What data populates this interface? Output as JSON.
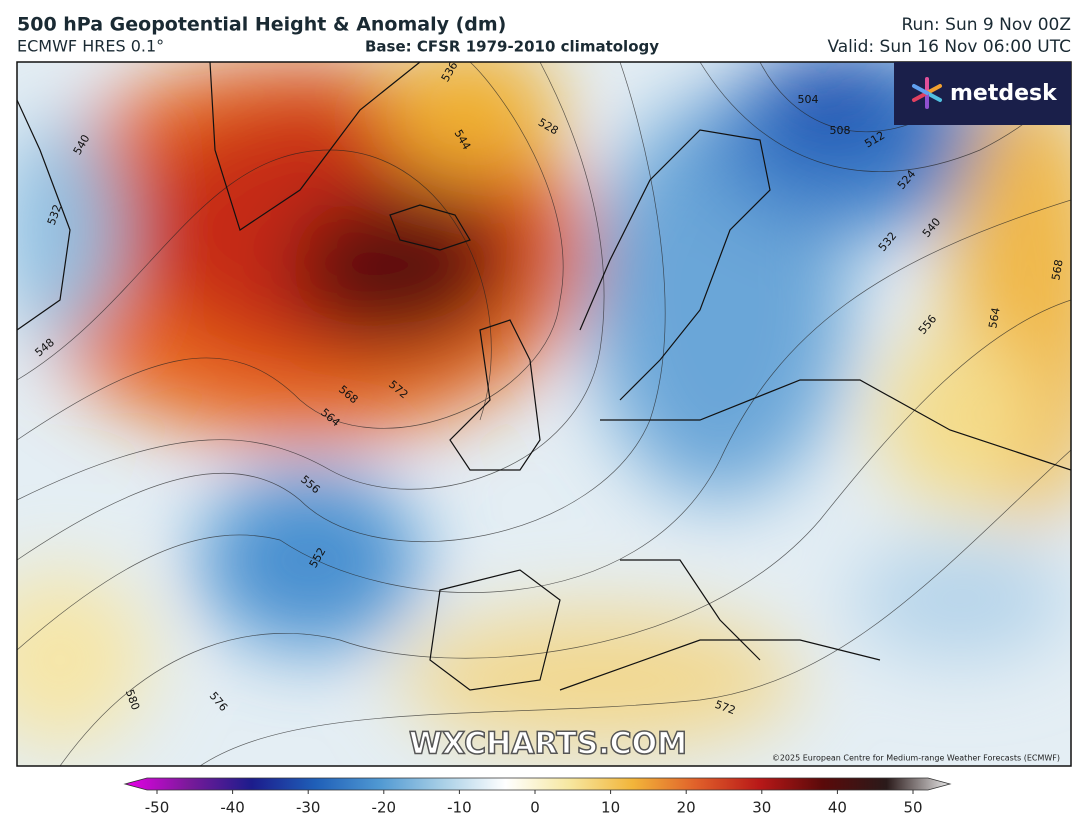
{
  "header": {
    "title": "500 hPa Geopotential Height & Anomaly (dm)",
    "model": "ECMWF HRES 0.1°",
    "base": "Base: CFSR 1979-2010 climatology",
    "run": "Run: Sun 9 Nov 00Z",
    "valid": "Valid: Sun 16 Nov 06:00 UTC"
  },
  "map": {
    "contour_labels": [
      "532",
      "548",
      "540",
      "536",
      "544",
      "528",
      "504",
      "508",
      "512",
      "524",
      "532",
      "540",
      "556",
      "564",
      "568",
      "568",
      "572",
      "564",
      "556",
      "552",
      "580",
      "576",
      "572"
    ],
    "watermark": "WXCHARTS.COM",
    "copyright": "©2025 European Centre for Medium-range Weather Forecasts (ECMWF)",
    "logo": "metdesk"
  },
  "colorbar": {
    "ticks": [
      -50,
      -40,
      -30,
      -20,
      -10,
      0,
      10,
      20,
      30,
      40,
      50
    ],
    "colors": [
      "#e800e8",
      "#7a1a9a",
      "#1c1c8c",
      "#1f5fb8",
      "#4f98d2",
      "#a8cfe6",
      "#ffffff",
      "#f6e7a0",
      "#f2b53a",
      "#e0602a",
      "#b81818",
      "#5a0a0a",
      "#2a1a1a",
      "#e8e8e8"
    ]
  }
}
